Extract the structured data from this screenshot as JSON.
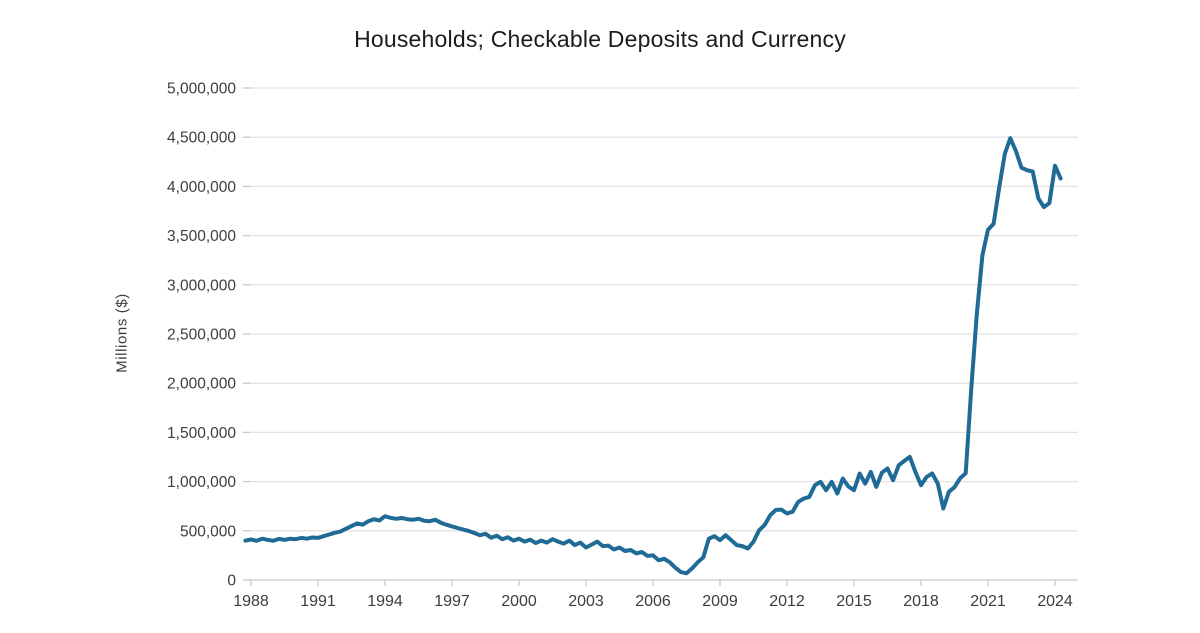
{
  "page": {
    "background": "#ffffff"
  },
  "chart_data": {
    "type": "line",
    "title": "Households; Checkable Deposits and Currency",
    "ylabel": "Millions ($)",
    "xlabel": "",
    "ylim": [
      0,
      5000000
    ],
    "xlim_years": [
      1987.75,
      2025.0
    ],
    "grid": "horizontal-only",
    "legend": "none",
    "y_tick_values": [
      0,
      500000,
      1000000,
      1500000,
      2000000,
      2500000,
      3000000,
      3500000,
      4000000,
      4500000,
      5000000
    ],
    "y_tick_labels": [
      "0",
      "500,000",
      "1,000,000",
      "1,500,000",
      "2,000,000",
      "2,500,000",
      "3,000,000",
      "3,500,000",
      "4,000,000",
      "4,500,000",
      "5,000,000"
    ],
    "x_tick_years": [
      1988,
      1991,
      1994,
      1997,
      2000,
      2003,
      2006,
      2009,
      2012,
      2015,
      2018,
      2021,
      2024
    ],
    "x_tick_labels": [
      "1988",
      "1991",
      "1994",
      "1997",
      "2000",
      "2003",
      "2006",
      "2009",
      "2012",
      "2015",
      "2018",
      "2021",
      "2024"
    ],
    "colors": {
      "line": "#1f6b96",
      "gridline": "#e3e3e3",
      "axis": "#c9c9c9",
      "tick_text": "#3d3d3d",
      "title_text": "#1c1c1c",
      "background": "#ffffff"
    },
    "series": [
      {
        "name": "Households; checkable deposits and currency (level)",
        "units": "Millions ($)",
        "frequency": "quarterly",
        "x_start_year": 1987.75,
        "x_step_years": 0.25,
        "values": [
          400000,
          412000,
          398000,
          420000,
          408000,
          398000,
          418000,
          408000,
          420000,
          415000,
          428000,
          420000,
          432000,
          428000,
          445000,
          462000,
          480000,
          492000,
          520000,
          548000,
          575000,
          562000,
          598000,
          618000,
          605000,
          648000,
          632000,
          622000,
          630000,
          618000,
          612000,
          622000,
          602000,
          598000,
          612000,
          582000,
          562000,
          545000,
          528000,
          512000,
          498000,
          478000,
          455000,
          470000,
          430000,
          450000,
          415000,
          435000,
          400000,
          420000,
          390000,
          410000,
          375000,
          400000,
          380000,
          415000,
          390000,
          370000,
          400000,
          355000,
          380000,
          330000,
          360000,
          390000,
          345000,
          350000,
          310000,
          330000,
          295000,
          305000,
          270000,
          285000,
          245000,
          250000,
          200000,
          215000,
          180000,
          125000,
          80000,
          68000,
          118000,
          180000,
          230000,
          420000,
          445000,
          405000,
          455000,
          405000,
          355000,
          345000,
          320000,
          390000,
          505000,
          560000,
          660000,
          712000,
          715000,
          676000,
          694000,
          794000,
          828000,
          845000,
          963000,
          997000,
          913000,
          997000,
          879000,
          1031000,
          950000,
          913000,
          1082000,
          980000,
          1099000,
          946000,
          1090000,
          1133000,
          1014000,
          1166000,
          1210000,
          1251000,
          1099000,
          963000,
          1048000,
          1082000,
          980000,
          727000,
          896000,
          943000,
          1034000,
          1085000,
          1950000,
          2700000,
          3300000,
          3560000,
          3620000,
          3990000,
          4330000,
          4490000,
          4360000,
          4190000,
          4165000,
          4150000,
          3880000,
          3790000,
          3830000,
          4210000,
          4080000
        ]
      }
    ]
  }
}
